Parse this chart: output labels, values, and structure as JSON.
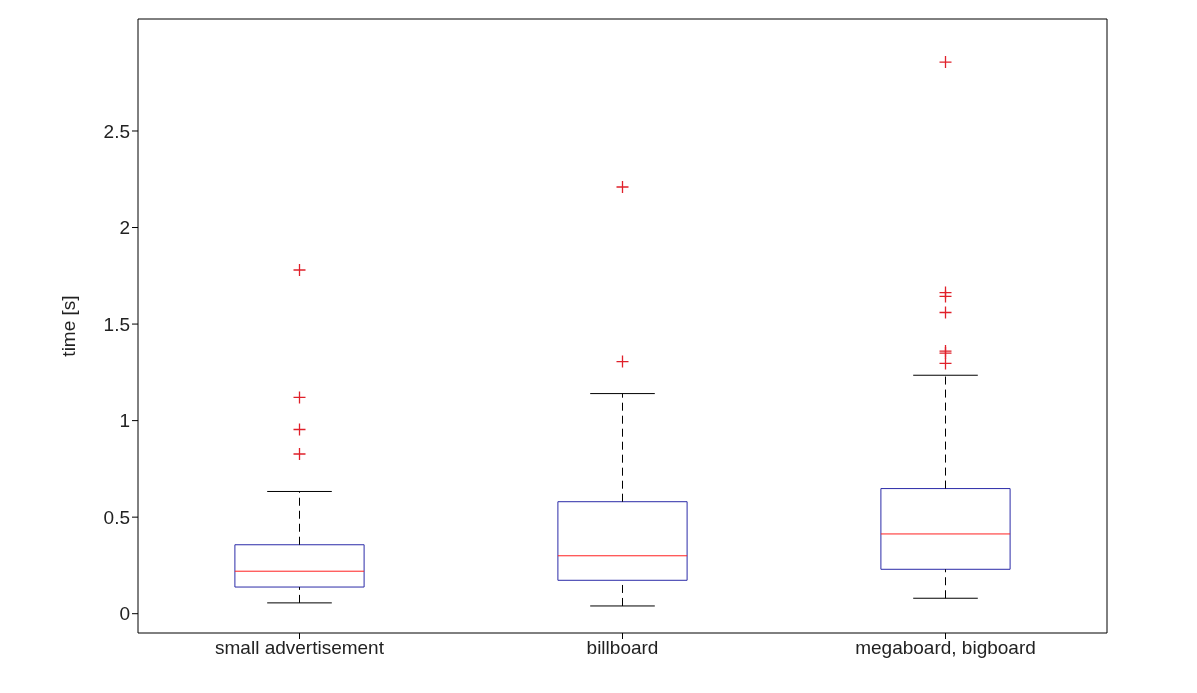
{
  "chart_data": {
    "type": "box",
    "ylabel": "time [s]",
    "categories": [
      "small advertisement",
      "billboard",
      "megaboard, bigboard"
    ],
    "series": [
      {
        "color": "#2b2ba8",
        "boxes": [
          {
            "low": 0.056,
            "q1": 0.138,
            "median": 0.22,
            "q3": 0.357,
            "high": 0.633,
            "outliers": [
              0.827,
              0.954,
              1.12,
              1.78
            ]
          },
          {
            "low": 0.04,
            "q1": 0.173,
            "median": 0.3,
            "q3": 0.58,
            "high": 1.14,
            "outliers": [
              1.306,
              2.21
            ]
          },
          {
            "low": 0.08,
            "q1": 0.23,
            "median": 0.413,
            "q3": 0.648,
            "high": 1.235,
            "outliers": [
              1.296,
              1.35,
              1.36,
              1.56,
              1.643,
              1.663,
              2.857
            ]
          }
        ]
      }
    ],
    "ylim": [
      -0.1,
      3.08
    ],
    "yticks": [
      0,
      0.5,
      1,
      1.5,
      2,
      2.5
    ]
  }
}
